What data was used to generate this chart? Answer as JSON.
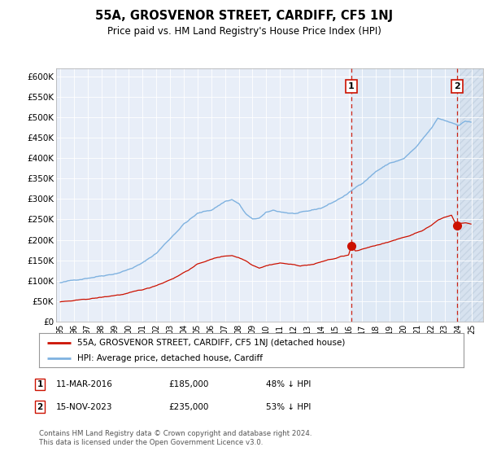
{
  "title": "55A, GROSVENOR STREET, CARDIFF, CF5 1NJ",
  "subtitle": "Price paid vs. HM Land Registry's House Price Index (HPI)",
  "ylim": [
    0,
    620000
  ],
  "yticks": [
    0,
    50000,
    100000,
    150000,
    200000,
    250000,
    300000,
    350000,
    400000,
    450000,
    500000,
    550000,
    600000
  ],
  "ytick_labels": [
    "£0",
    "£50K",
    "£100K",
    "£150K",
    "£200K",
    "£250K",
    "£300K",
    "£350K",
    "£400K",
    "£450K",
    "£500K",
    "£550K",
    "£600K"
  ],
  "background_color": "#ffffff",
  "plot_bg_color": "#e8eef8",
  "grid_color": "#ffffff",
  "hpi_color": "#7fb2e0",
  "price_color": "#cc1100",
  "vline_color": "#cc1100",
  "shade_color": "#dce8f5",
  "hatch_color": "#c8d8e8",
  "legend_red_label": "55A, GROSVENOR STREET, CARDIFF, CF5 1NJ (detached house)",
  "legend_blue_label": "HPI: Average price, detached house, Cardiff",
  "footnote": "Contains HM Land Registry data © Crown copyright and database right 2024.\nThis data is licensed under the Open Government Licence v3.0.",
  "marker1_x": 2016.19,
  "marker2_x": 2023.88,
  "marker1_price": 185000,
  "marker2_price": 235000,
  "xlim_left": 1994.7,
  "xlim_right": 2025.8,
  "xtick_years": [
    1995,
    1996,
    1997,
    1998,
    1999,
    2000,
    2001,
    2002,
    2003,
    2004,
    2005,
    2006,
    2007,
    2008,
    2009,
    2010,
    2011,
    2012,
    2013,
    2014,
    2015,
    2016,
    2017,
    2018,
    2019,
    2020,
    2021,
    2022,
    2023,
    2024,
    2025
  ]
}
